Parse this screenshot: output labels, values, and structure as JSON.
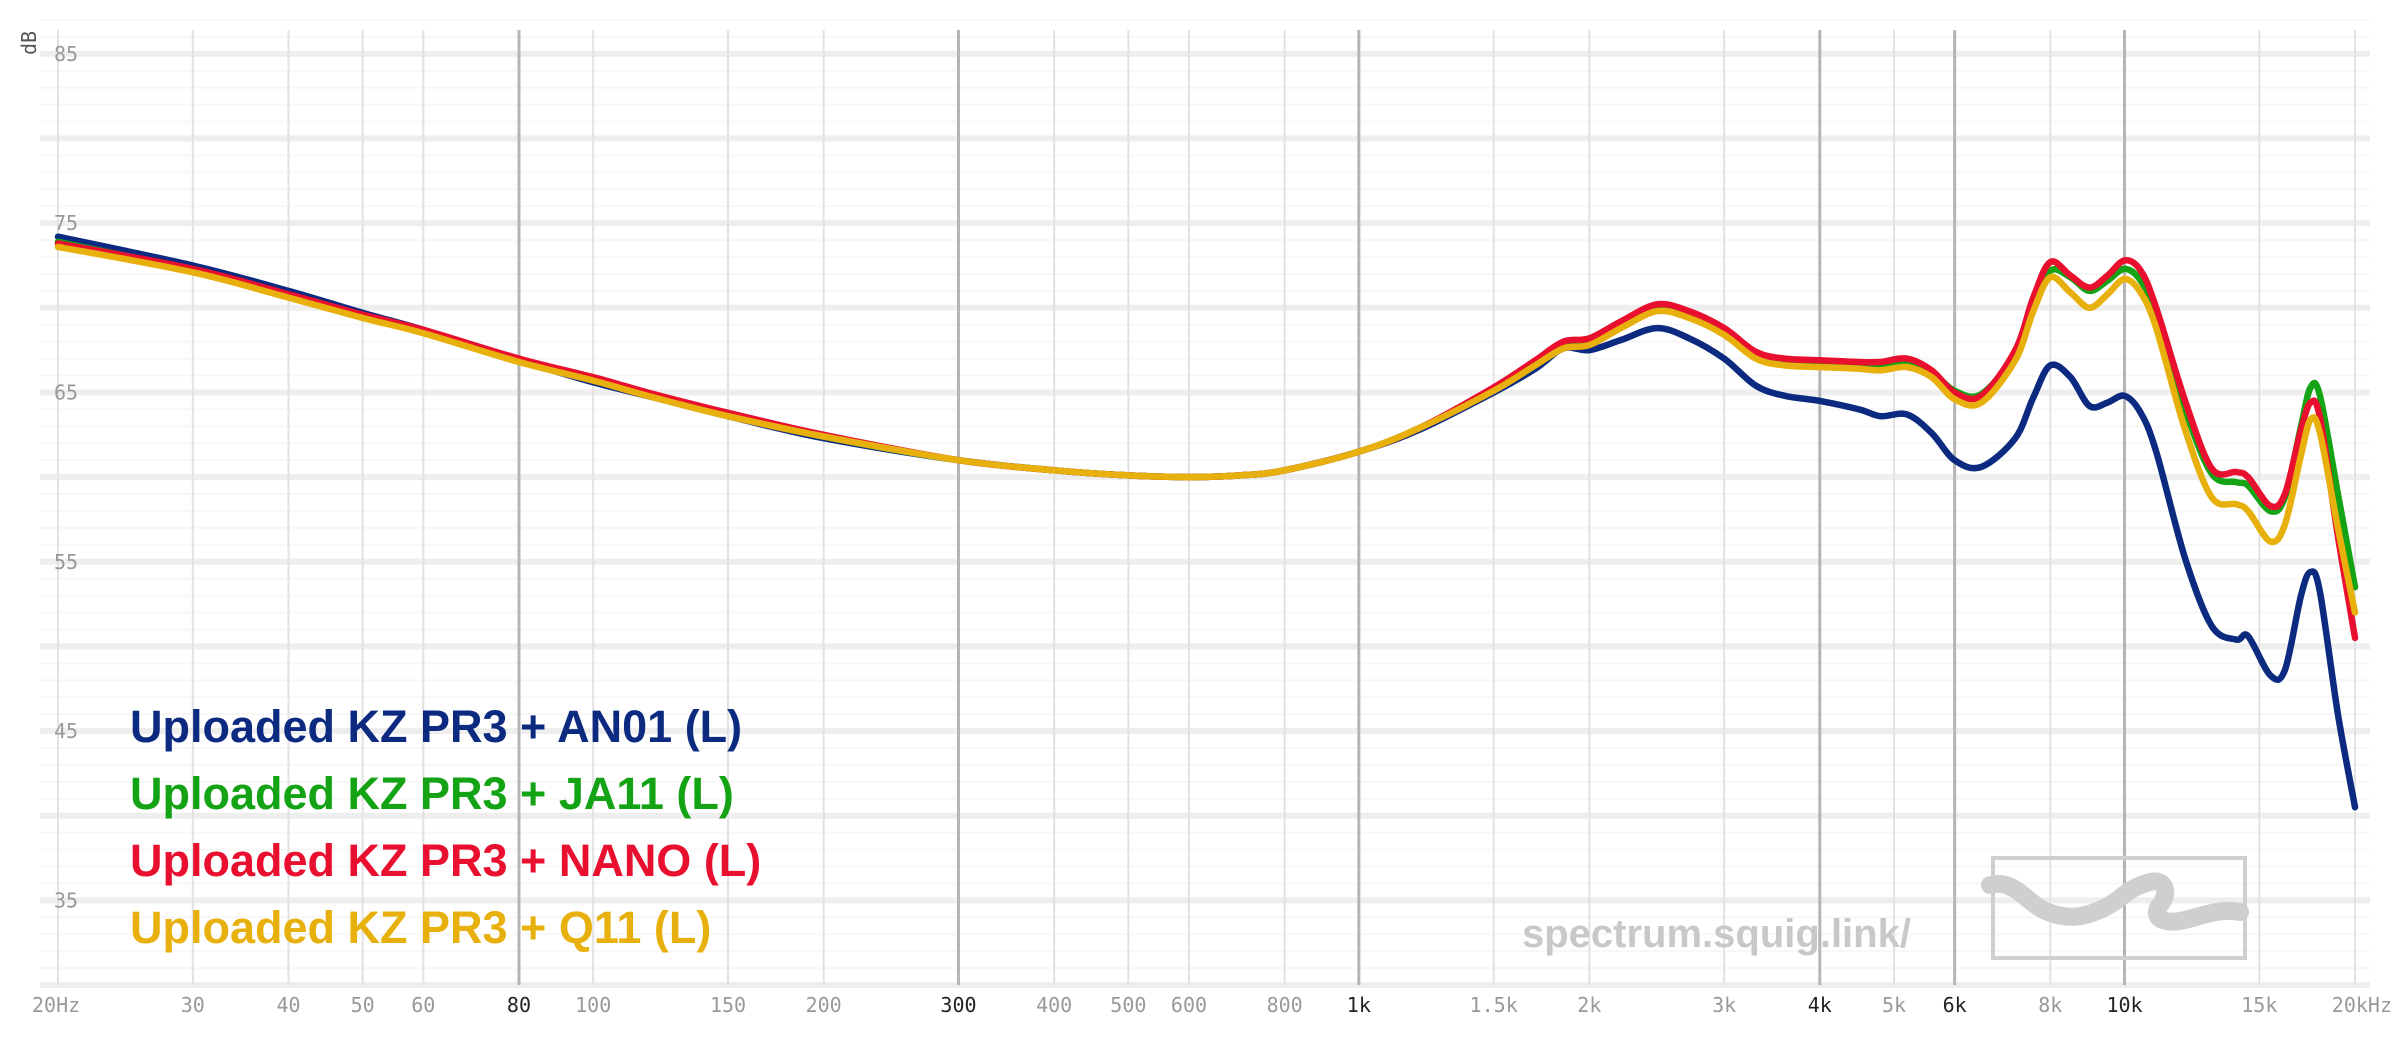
{
  "chart_data": {
    "type": "line",
    "title": "",
    "xlabel": "",
    "ylabel": "dB",
    "x_scale": "log",
    "xlim": [
      20,
      20000
    ],
    "ylim": [
      30,
      87
    ],
    "grid": true,
    "legend_position": "bottom-left",
    "watermark": "spectrum.squig.link/",
    "y_ticks": [
      {
        "value": 85,
        "label": "85"
      },
      {
        "value": 75,
        "label": "75"
      },
      {
        "value": 65,
        "label": "65"
      },
      {
        "value": 55,
        "label": "55"
      },
      {
        "value": 45,
        "label": "45"
      },
      {
        "value": 35,
        "label": "35"
      }
    ],
    "x_ticks": [
      {
        "value": 20,
        "label": "20Hz",
        "major": false
      },
      {
        "value": 30,
        "label": "30",
        "major": false
      },
      {
        "value": 40,
        "label": "40",
        "major": false
      },
      {
        "value": 50,
        "label": "50",
        "major": false
      },
      {
        "value": 60,
        "label": "60",
        "major": false
      },
      {
        "value": 80,
        "label": "80",
        "major": true
      },
      {
        "value": 100,
        "label": "100",
        "major": false
      },
      {
        "value": 150,
        "label": "150",
        "major": false
      },
      {
        "value": 200,
        "label": "200",
        "major": false
      },
      {
        "value": 300,
        "label": "300",
        "major": true
      },
      {
        "value": 400,
        "label": "400",
        "major": false
      },
      {
        "value": 500,
        "label": "500",
        "major": false
      },
      {
        "value": 600,
        "label": "600",
        "major": false
      },
      {
        "value": 800,
        "label": "800",
        "major": false
      },
      {
        "value": 1000,
        "label": "1k",
        "major": true
      },
      {
        "value": 1500,
        "label": "1.5k",
        "major": false
      },
      {
        "value": 2000,
        "label": "2k",
        "major": false
      },
      {
        "value": 3000,
        "label": "3k",
        "major": false
      },
      {
        "value": 4000,
        "label": "4k",
        "major": true
      },
      {
        "value": 5000,
        "label": "5k",
        "major": false
      },
      {
        "value": 6000,
        "label": "6k",
        "major": true
      },
      {
        "value": 8000,
        "label": "8k",
        "major": false
      },
      {
        "value": 10000,
        "label": "10k",
        "major": true
      },
      {
        "value": 15000,
        "label": "15k",
        "major": false
      },
      {
        "value": 20000,
        "label": "20kHz",
        "major": false
      }
    ],
    "series": [
      {
        "name": "Uploaded KZ PR3 + AN01 (L)",
        "color": "#0b2a80",
        "points": [
          [
            20,
            74.2
          ],
          [
            30,
            72.5
          ],
          [
            40,
            71.0
          ],
          [
            50,
            69.7
          ],
          [
            60,
            68.7
          ],
          [
            80,
            66.9
          ],
          [
            100,
            65.6
          ],
          [
            120,
            64.7
          ],
          [
            150,
            63.6
          ],
          [
            200,
            62.3
          ],
          [
            300,
            61.0
          ],
          [
            400,
            60.4
          ],
          [
            500,
            60.1
          ],
          [
            600,
            60.0
          ],
          [
            700,
            60.1
          ],
          [
            800,
            60.4
          ],
          [
            1000,
            61.5
          ],
          [
            1200,
            62.8
          ],
          [
            1500,
            65.0
          ],
          [
            1700,
            66.4
          ],
          [
            1850,
            67.6
          ],
          [
            2000,
            67.5
          ],
          [
            2200,
            68.1
          ],
          [
            2450,
            68.8
          ],
          [
            2700,
            68.2
          ],
          [
            3000,
            67.0
          ],
          [
            3300,
            65.4
          ],
          [
            3600,
            64.8
          ],
          [
            4000,
            64.5
          ],
          [
            4500,
            64.0
          ],
          [
            4800,
            63.6
          ],
          [
            5200,
            63.7
          ],
          [
            5600,
            62.6
          ],
          [
            6000,
            61.0
          ],
          [
            6500,
            60.6
          ],
          [
            7200,
            62.3
          ],
          [
            7600,
            64.7
          ],
          [
            8000,
            66.6
          ],
          [
            8500,
            65.9
          ],
          [
            9000,
            64.2
          ],
          [
            9500,
            64.4
          ],
          [
            10000,
            64.8
          ],
          [
            10500,
            63.8
          ],
          [
            11000,
            61.5
          ],
          [
            12000,
            55.2
          ],
          [
            13000,
            51.2
          ],
          [
            14000,
            50.4
          ],
          [
            14500,
            50.6
          ],
          [
            15500,
            48.3
          ],
          [
            16200,
            48.6
          ],
          [
            17000,
            53.0
          ],
          [
            17500,
            54.4
          ],
          [
            18000,
            53.2
          ],
          [
            19000,
            46.0
          ],
          [
            20000,
            40.5
          ]
        ]
      },
      {
        "name": "Uploaded KZ PR3 + JA11 (L)",
        "color": "#14a314",
        "points": [
          [
            20,
            73.9
          ],
          [
            30,
            72.2
          ],
          [
            40,
            70.7
          ],
          [
            50,
            69.5
          ],
          [
            60,
            68.6
          ],
          [
            80,
            66.9
          ],
          [
            100,
            65.8
          ],
          [
            120,
            64.8
          ],
          [
            150,
            63.7
          ],
          [
            200,
            62.4
          ],
          [
            300,
            61.0
          ],
          [
            400,
            60.4
          ],
          [
            500,
            60.1
          ],
          [
            600,
            60.0
          ],
          [
            700,
            60.1
          ],
          [
            800,
            60.4
          ],
          [
            1000,
            61.5
          ],
          [
            1200,
            62.9
          ],
          [
            1500,
            65.2
          ],
          [
            1700,
            66.8
          ],
          [
            1850,
            67.8
          ],
          [
            2000,
            68.0
          ],
          [
            2200,
            68.9
          ],
          [
            2450,
            69.9
          ],
          [
            2700,
            69.6
          ],
          [
            3000,
            68.5
          ],
          [
            3300,
            67.2
          ],
          [
            3600,
            66.9
          ],
          [
            4000,
            66.8
          ],
          [
            4500,
            66.7
          ],
          [
            4800,
            66.6
          ],
          [
            5200,
            66.8
          ],
          [
            5600,
            66.2
          ],
          [
            6000,
            65.1
          ],
          [
            6500,
            64.9
          ],
          [
            7200,
            67.3
          ],
          [
            7600,
            70.2
          ],
          [
            8000,
            72.2
          ],
          [
            8500,
            71.8
          ],
          [
            9000,
            71.0
          ],
          [
            9500,
            71.6
          ],
          [
            10000,
            72.3
          ],
          [
            10500,
            71.6
          ],
          [
            11000,
            69.6
          ],
          [
            12000,
            64.0
          ],
          [
            13000,
            60.2
          ],
          [
            14000,
            59.7
          ],
          [
            14500,
            59.5
          ],
          [
            15500,
            58.0
          ],
          [
            16200,
            58.8
          ],
          [
            17000,
            63.0
          ],
          [
            17500,
            65.3
          ],
          [
            18000,
            64.8
          ],
          [
            19000,
            59.0
          ],
          [
            20000,
            53.5
          ]
        ]
      },
      {
        "name": "Uploaded KZ PR3 + NANO (L)",
        "color": "#e8102e",
        "points": [
          [
            20,
            73.8
          ],
          [
            30,
            72.3
          ],
          [
            40,
            70.8
          ],
          [
            50,
            69.6
          ],
          [
            60,
            68.7
          ],
          [
            80,
            67.0
          ],
          [
            100,
            65.9
          ],
          [
            120,
            64.9
          ],
          [
            150,
            63.8
          ],
          [
            200,
            62.5
          ],
          [
            300,
            61.0
          ],
          [
            400,
            60.4
          ],
          [
            500,
            60.1
          ],
          [
            600,
            60.0
          ],
          [
            700,
            60.1
          ],
          [
            800,
            60.4
          ],
          [
            1000,
            61.5
          ],
          [
            1200,
            62.9
          ],
          [
            1500,
            65.3
          ],
          [
            1700,
            66.9
          ],
          [
            1850,
            68.0
          ],
          [
            2000,
            68.2
          ],
          [
            2200,
            69.2
          ],
          [
            2450,
            70.2
          ],
          [
            2700,
            69.8
          ],
          [
            3000,
            68.8
          ],
          [
            3300,
            67.4
          ],
          [
            3600,
            67.0
          ],
          [
            4000,
            66.9
          ],
          [
            4500,
            66.8
          ],
          [
            4800,
            66.8
          ],
          [
            5200,
            67.0
          ],
          [
            5600,
            66.3
          ],
          [
            6000,
            65.0
          ],
          [
            6500,
            64.8
          ],
          [
            7200,
            67.5
          ],
          [
            7600,
            70.6
          ],
          [
            8000,
            72.7
          ],
          [
            8500,
            71.9
          ],
          [
            9000,
            71.2
          ],
          [
            9500,
            71.9
          ],
          [
            10000,
            72.8
          ],
          [
            10500,
            72.2
          ],
          [
            11000,
            70.0
          ],
          [
            12000,
            64.5
          ],
          [
            13000,
            60.5
          ],
          [
            14000,
            60.3
          ],
          [
            14500,
            60.0
          ],
          [
            15500,
            58.3
          ],
          [
            16200,
            59.0
          ],
          [
            17000,
            62.8
          ],
          [
            17500,
            64.4
          ],
          [
            18000,
            63.5
          ],
          [
            19000,
            56.5
          ],
          [
            20000,
            50.5
          ]
        ]
      },
      {
        "name": "Uploaded KZ PR3 + Q11 (L)",
        "color": "#e8b00c",
        "points": [
          [
            20,
            73.6
          ],
          [
            30,
            72.1
          ],
          [
            40,
            70.6
          ],
          [
            50,
            69.4
          ],
          [
            60,
            68.5
          ],
          [
            80,
            66.8
          ],
          [
            100,
            65.7
          ],
          [
            120,
            64.7
          ],
          [
            150,
            63.6
          ],
          [
            200,
            62.4
          ],
          [
            300,
            61.0
          ],
          [
            400,
            60.4
          ],
          [
            500,
            60.1
          ],
          [
            600,
            60.0
          ],
          [
            700,
            60.1
          ],
          [
            800,
            60.4
          ],
          [
            1000,
            61.5
          ],
          [
            1200,
            62.9
          ],
          [
            1500,
            65.1
          ],
          [
            1700,
            66.6
          ],
          [
            1850,
            67.6
          ],
          [
            2000,
            67.8
          ],
          [
            2200,
            68.8
          ],
          [
            2450,
            69.8
          ],
          [
            2700,
            69.4
          ],
          [
            3000,
            68.4
          ],
          [
            3300,
            67.0
          ],
          [
            3600,
            66.6
          ],
          [
            4000,
            66.5
          ],
          [
            4500,
            66.4
          ],
          [
            4800,
            66.3
          ],
          [
            5200,
            66.5
          ],
          [
            5600,
            65.9
          ],
          [
            6000,
            64.6
          ],
          [
            6500,
            64.4
          ],
          [
            7200,
            66.9
          ],
          [
            7600,
            69.8
          ],
          [
            8000,
            71.8
          ],
          [
            8500,
            70.9
          ],
          [
            9000,
            70.0
          ],
          [
            9500,
            70.8
          ],
          [
            10000,
            71.7
          ],
          [
            10500,
            70.9
          ],
          [
            11000,
            68.8
          ],
          [
            12000,
            62.8
          ],
          [
            13000,
            58.8
          ],
          [
            14000,
            58.4
          ],
          [
            14500,
            58.0
          ],
          [
            15500,
            56.2
          ],
          [
            16200,
            57.2
          ],
          [
            17000,
            61.3
          ],
          [
            17500,
            63.4
          ],
          [
            18000,
            62.6
          ],
          [
            19000,
            57.0
          ],
          [
            20000,
            52.0
          ]
        ]
      }
    ]
  }
}
